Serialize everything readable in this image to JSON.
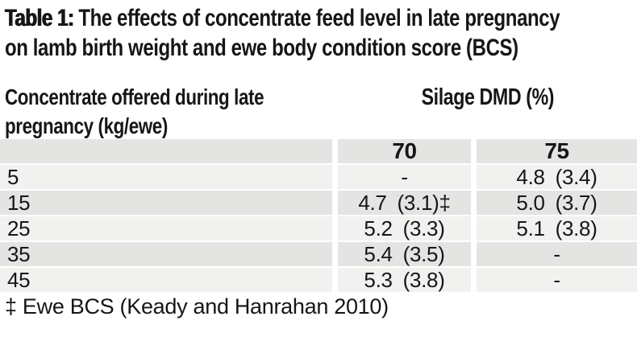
{
  "title": {
    "prefix": "Table 1:",
    "line1_rest": "The effects of concentrate feed level in late pregnancy",
    "line2": "on lamb birth weight and ewe body condition score (BCS)"
  },
  "chart_data": {
    "type": "table",
    "row_header": "Concentrate offered during late pregnancy (kg/ewe)",
    "column_group_header": "Silage DMD (%)",
    "columns": [
      "70",
      "75"
    ],
    "rows": [
      {
        "label": "5",
        "values": [
          "-",
          "4.8 (3.4)"
        ]
      },
      {
        "label": "15",
        "values": [
          "4.7 (3.1)‡",
          "5.0 (3.7)"
        ]
      },
      {
        "label": "25",
        "values": [
          "5.2 (3.3)",
          "5.1 (3.8)"
        ]
      },
      {
        "label": "35",
        "values": [
          "5.4 (3.5)",
          "-"
        ]
      },
      {
        "label": "45",
        "values": [
          "5.3 (3.8)",
          "-"
        ]
      }
    ],
    "footnote": "‡ Ewe BCS (Keady and Hanrahan 2010)"
  },
  "colors": {
    "row_dark": "#e4e4e2",
    "row_light": "#f1f1ef",
    "text": "#161616",
    "background": "#ffffff"
  }
}
